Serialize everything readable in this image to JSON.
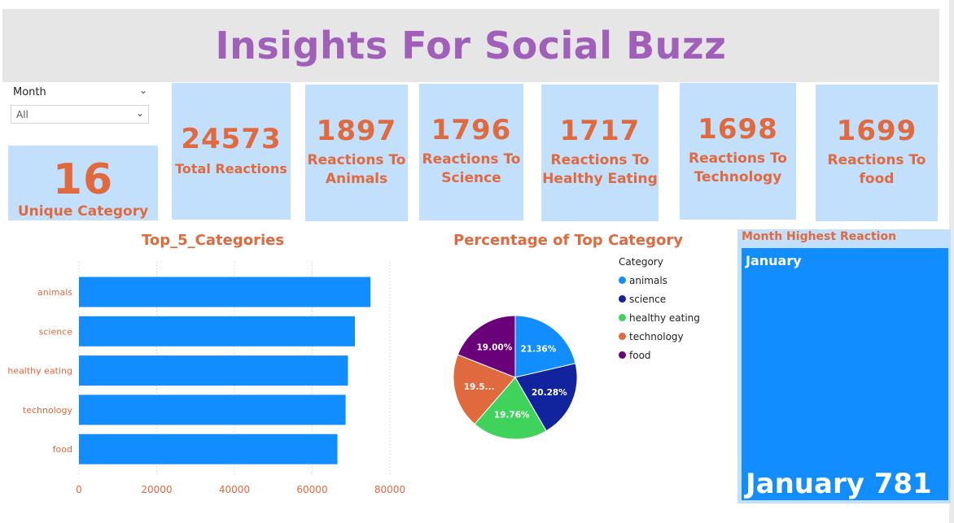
{
  "title": "Insights For Social Buzz",
  "slicer": {
    "label": "Month",
    "value": "All"
  },
  "kpis": {
    "unique_category": {
      "value": "16",
      "label": "Unique Category"
    },
    "total_reactions": {
      "value": "24573",
      "label": "Total Reactions"
    },
    "animals": {
      "value": "1897",
      "label_line1": "Reactions To",
      "label_line2": "Animals"
    },
    "science": {
      "value": "1796",
      "label_line1": "Reactions To",
      "label_line2": "Science"
    },
    "healthy": {
      "value": "1717",
      "label_line1": "Reactions To",
      "label_line2": "Healthy Eating"
    },
    "technology": {
      "value": "1698",
      "label_line1": "Reactions To",
      "label_line2": "Technology"
    },
    "food": {
      "value": "1699",
      "label_line1": "Reactions To",
      "label_line2": "food"
    }
  },
  "colors": {
    "bar": "#118dff",
    "accent": "#e0693e",
    "title": "#a05fb8",
    "card": "#c2e0fb"
  },
  "month_panel": {
    "title": "Month Highest Reaction",
    "name": "January",
    "big": "January 781"
  },
  "chart_data": [
    {
      "type": "bar",
      "orientation": "horizontal",
      "title": "Top_5_Categories",
      "categories": [
        "animals",
        "science",
        "healthy eating",
        "technology",
        "food"
      ],
      "values": [
        75000,
        71000,
        69200,
        68600,
        66500
      ],
      "xlim": [
        0,
        80000
      ],
      "xticks": [
        "0",
        "20000",
        "40000",
        "60000",
        "80000"
      ],
      "grid": true
    },
    {
      "type": "pie",
      "title": "Percentage of Top Category",
      "legend_title": "Category",
      "labels": [
        "animals",
        "science",
        "healthy eating",
        "technology",
        "food"
      ],
      "values": [
        21.36,
        20.28,
        19.76,
        19.6,
        19.0
      ],
      "data_labels": [
        "21.36%",
        "20.28%",
        "19.76%",
        "19.5...",
        "19.00%"
      ],
      "colors": [
        "#118dff",
        "#12239e",
        "#3fd35b",
        "#e0693e",
        "#6b007b"
      ],
      "legend_position": "right"
    }
  ]
}
